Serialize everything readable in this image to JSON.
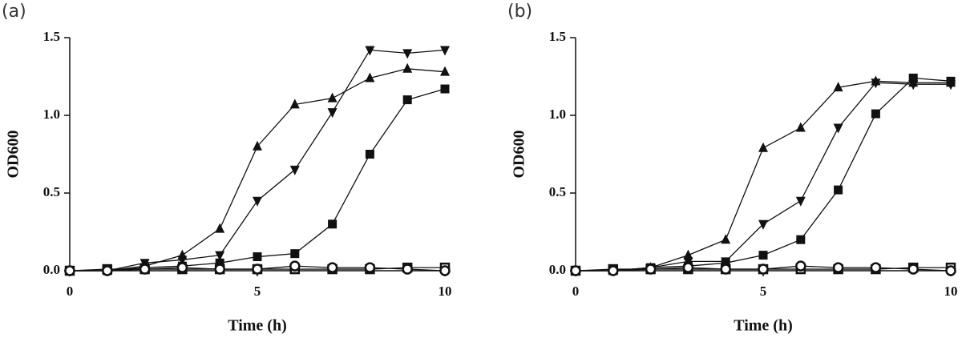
{
  "chart_data": [
    {
      "type": "line",
      "label": "(a)",
      "xlabel": "Time (h)",
      "ylabel": "OD600",
      "x": [
        0,
        1,
        2,
        3,
        4,
        5,
        6,
        7,
        8,
        9,
        10
      ],
      "xlim": [
        0,
        10
      ],
      "xticks": [
        0,
        5,
        10
      ],
      "ylim": [
        0,
        1.5
      ],
      "yticks": [
        {
          "value": 0,
          "label": "0.0"
        },
        0.5,
        {
          "value": 1,
          "label": "1.0"
        },
        1.5
      ],
      "series": [
        {
          "marker": "triangle-up",
          "color": "#111",
          "values": [
            0,
            0,
            0.03,
            0.1,
            0.27,
            0.8,
            1.07,
            1.11,
            1.24,
            1.3,
            1.28
          ]
        },
        {
          "marker": "triangle-down",
          "color": "#111",
          "values": [
            0,
            0,
            0.05,
            0.07,
            0.1,
            0.45,
            0.65,
            1.02,
            1.42,
            1.4,
            1.42
          ]
        },
        {
          "marker": "square",
          "color": "#111",
          "values": [
            0,
            0,
            0.02,
            0.03,
            0.05,
            0.09,
            0.11,
            0.3,
            0.75,
            1.1,
            1.17
          ]
        },
        {
          "marker": "open-square",
          "color": "#111",
          "values": [
            0,
            0.01,
            0.01,
            0.01,
            0.01,
            0.01,
            0.01,
            0.01,
            0.01,
            0.02,
            0.02
          ]
        },
        {
          "marker": "open-circle",
          "color": "#111",
          "values": [
            0,
            0,
            0.01,
            0.02,
            0.01,
            0.01,
            0.03,
            0.02,
            0.02,
            0.01,
            0
          ]
        }
      ]
    },
    {
      "type": "line",
      "label": "(b)",
      "xlabel": "Time (h)",
      "ylabel": "OD600",
      "x": [
        0,
        1,
        2,
        3,
        4,
        5,
        6,
        7,
        8,
        9,
        10
      ],
      "xlim": [
        0,
        10
      ],
      "xticks": [
        0,
        5,
        10
      ],
      "ylim": [
        0,
        1.5
      ],
      "yticks": [
        {
          "value": 0,
          "label": "0.0"
        },
        0.5,
        {
          "value": 1,
          "label": "1.0"
        },
        1.5
      ],
      "series": [
        {
          "marker": "triangle-up",
          "color": "#111",
          "values": [
            0,
            0,
            0.02,
            0.1,
            0.2,
            0.79,
            0.92,
            1.18,
            1.22,
            1.21,
            1.21
          ]
        },
        {
          "marker": "triangle-down",
          "color": "#111",
          "values": [
            0,
            0,
            0.02,
            0.06,
            0.06,
            0.3,
            0.45,
            0.92,
            1.21,
            1.2,
            1.2
          ]
        },
        {
          "marker": "square",
          "color": "#111",
          "values": [
            0,
            0,
            0.02,
            0.03,
            0.05,
            0.1,
            0.2,
            0.52,
            1.01,
            1.24,
            1.22
          ]
        },
        {
          "marker": "open-square",
          "color": "#111",
          "values": [
            0,
            0.01,
            0.01,
            0.01,
            0.01,
            0.01,
            0.01,
            0.01,
            0.01,
            0.02,
            0.02
          ]
        },
        {
          "marker": "open-circle",
          "color": "#111",
          "values": [
            0,
            0,
            0.01,
            0.02,
            0.01,
            0.01,
            0.03,
            0.02,
            0.02,
            0.01,
            0
          ]
        }
      ]
    }
  ]
}
